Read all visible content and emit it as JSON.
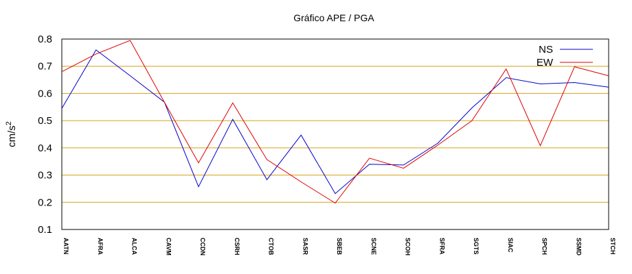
{
  "chart_data": {
    "type": "line",
    "title": "Gráfico  APE / PGA",
    "xlabel": "",
    "ylabel": "cm/s",
    "ylabel_superscript": "2",
    "ylim": [
      0.1,
      0.8
    ],
    "yticks": [
      "0.1",
      "0.2",
      "0.3",
      "0.4",
      "0.5",
      "0.6",
      "0.7",
      "0.8"
    ],
    "grid": true,
    "legend_position": "top-right",
    "categories": [
      "AATN",
      "AFRA",
      "ALCA",
      "CAVM",
      "CCDN",
      "CSRH",
      "CTOB",
      "SASR",
      "SBEB",
      "SCNE",
      "SCOH",
      "SFRA",
      "SGTS",
      "SIAC",
      "SPCH",
      "SSMD",
      "STCH"
    ],
    "series": [
      {
        "name": "NS",
        "color": "#0000cc",
        "values": [
          0.545,
          0.76,
          0.665,
          0.568,
          0.257,
          0.505,
          0.283,
          0.447,
          0.232,
          0.34,
          0.337,
          0.417,
          0.547,
          0.658,
          0.635,
          0.64,
          0.623
        ]
      },
      {
        "name": "EW",
        "color": "#dd0000",
        "values": [
          0.68,
          0.745,
          0.795,
          0.568,
          0.345,
          0.565,
          0.357,
          0.275,
          0.197,
          0.362,
          0.325,
          0.41,
          0.5,
          0.69,
          0.408,
          0.698,
          0.665
        ]
      }
    ],
    "grid_color": "#d4a017"
  }
}
